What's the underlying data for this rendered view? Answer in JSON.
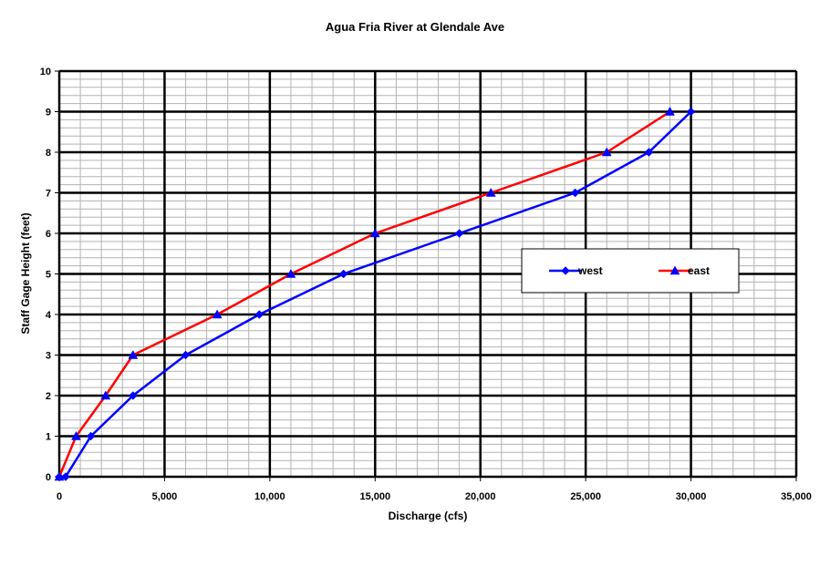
{
  "chart_data": {
    "type": "line",
    "title": "Agua Fria River at Glendale Ave",
    "xlabel": "Discharge (cfs)",
    "ylabel": "Staff Gage Height (feet)",
    "xlim": [
      0,
      35000
    ],
    "ylim": [
      0,
      10
    ],
    "x_ticks": [
      "0",
      "5,000",
      "10,000",
      "15,000",
      "20,000",
      "25,000",
      "30,000",
      "35,000"
    ],
    "y_ticks": [
      "0",
      "1",
      "2",
      "3",
      "4",
      "5",
      "6",
      "7",
      "8",
      "9",
      "10"
    ],
    "grid": {
      "major": true,
      "minor": true
    },
    "legend_position": "right",
    "series": [
      {
        "name": "west",
        "color": "#0000ff",
        "marker": "diamond",
        "points": [
          [
            0,
            0
          ],
          [
            300,
            0
          ],
          [
            1500,
            1
          ],
          [
            3500,
            2
          ],
          [
            6000,
            3
          ],
          [
            9500,
            4
          ],
          [
            13500,
            5
          ],
          [
            19000,
            6
          ],
          [
            24500,
            7
          ],
          [
            28000,
            8
          ],
          [
            30000,
            9
          ]
        ]
      },
      {
        "name": "east",
        "color": "#ff0000",
        "marker_color": "#0000ff",
        "marker": "triangle",
        "points": [
          [
            0,
            0
          ],
          [
            800,
            1
          ],
          [
            2200,
            2
          ],
          [
            3500,
            3
          ],
          [
            7500,
            4
          ],
          [
            11000,
            5
          ],
          [
            15000,
            6
          ],
          [
            20500,
            7
          ],
          [
            26000,
            8
          ],
          [
            29000,
            9
          ]
        ]
      }
    ]
  }
}
